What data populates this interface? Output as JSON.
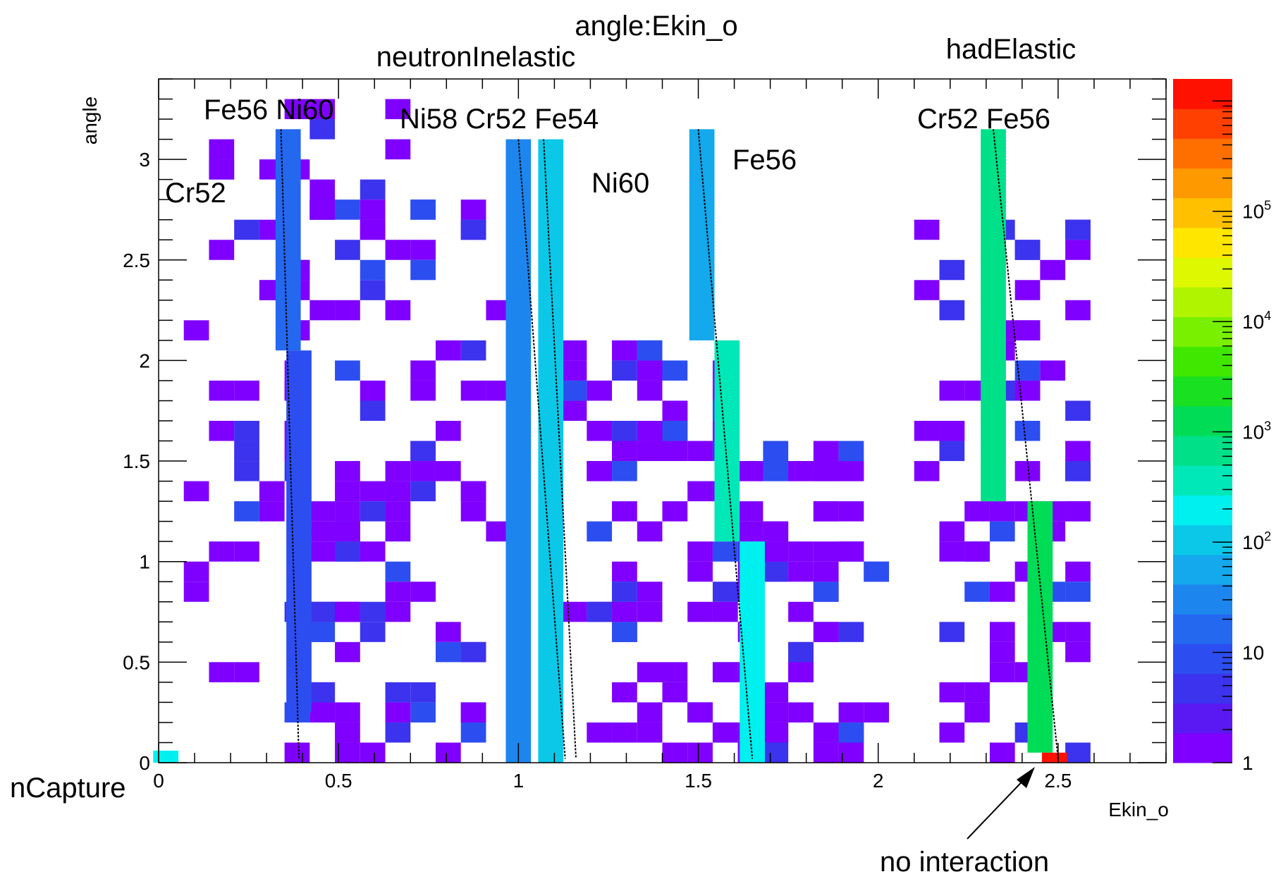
{
  "chart_data": {
    "type": "heatmap",
    "title": "angle:Ekin_o",
    "xlabel": "Ekin_o",
    "ylabel": "angle",
    "xlim": [
      0,
      2.8
    ],
    "ylim": [
      0,
      3.4
    ],
    "x_ticks": [
      "0",
      "0.5",
      "1",
      "1.5",
      "2",
      "2.5"
    ],
    "y_ticks": [
      "0",
      "0.5",
      "1",
      "1.5",
      "2",
      "2.5",
      "3"
    ],
    "z_scale": "log",
    "z_ticks": [
      "1",
      "10",
      "10^2",
      "10^3",
      "10^4",
      "10^5"
    ],
    "color_palette": [
      "#7f00ff",
      "#5a18f2",
      "#3c33ee",
      "#2c4ef0",
      "#2468f0",
      "#1c86ee",
      "#14a8ec",
      "#0cc8e8",
      "#00f0f0",
      "#00e8b8",
      "#00e088",
      "#00dc55",
      "#19e021",
      "#40e800",
      "#78f000",
      "#b0f400",
      "#ddf800",
      "#ffe600",
      "#ffc000",
      "#ff9900",
      "#ff6f00",
      "#ff4000",
      "#ff1100"
    ],
    "bands": [
      {
        "x": 0.36,
        "y0": 2.05,
        "y1": 3.15,
        "level": 4,
        "line_top_x": 0.34,
        "line_bottom_x": 0.39
      },
      {
        "x": 0.39,
        "y0": 0.25,
        "y1": 2.05,
        "level": 3
      },
      {
        "x": 1.0,
        "y0": 0.0,
        "y1": 3.1,
        "level": 5,
        "line_top_x": 1.0,
        "line_bottom_x": 1.13
      },
      {
        "x": 1.09,
        "y0": 0.0,
        "y1": 3.1,
        "level": 7,
        "line_top_x": 1.07,
        "line_bottom_x": 1.16
      },
      {
        "x": 1.51,
        "y0": 2.1,
        "y1": 3.15,
        "level": 6,
        "line_top_x": 1.5,
        "line_bottom_x": 1.65
      },
      {
        "x": 1.58,
        "y0": 1.1,
        "y1": 2.1,
        "level": 9
      },
      {
        "x": 1.65,
        "y0": 0.0,
        "y1": 1.1,
        "level": 8
      },
      {
        "x": 2.32,
        "y0": 1.3,
        "y1": 3.15,
        "level": 10,
        "line_top_x": 2.32,
        "line_bottom_x": 2.5
      },
      {
        "x": 2.45,
        "y0": 0.05,
        "y1": 1.3,
        "level": 11
      },
      {
        "x": 2.49,
        "y0": 0.0,
        "y1": 0.05,
        "level": 22
      },
      {
        "x": 0.02,
        "y0": 0.0,
        "y1": 0.06,
        "level": 8
      }
    ]
  },
  "annotations": [
    {
      "text": "neutronInelastic"
    },
    {
      "text": "hadElastic"
    },
    {
      "text": "Fe56 Ni60"
    },
    {
      "text": "Ni58 Cr52 Fe54"
    },
    {
      "text": "Cr52"
    },
    {
      "text": "Ni60"
    },
    {
      "text": "Fe56"
    },
    {
      "text": "Cr52 Fe56"
    },
    {
      "text": "nCapture"
    },
    {
      "text": "no interaction"
    }
  ]
}
